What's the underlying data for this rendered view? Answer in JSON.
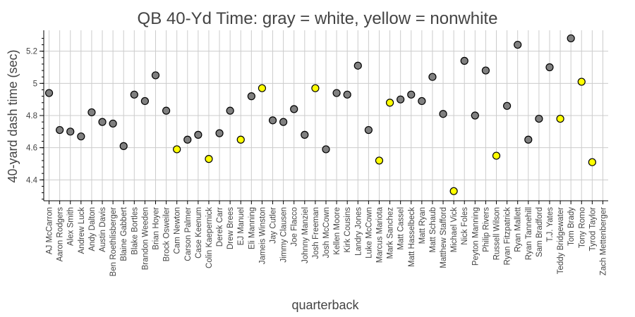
{
  "chart_data": {
    "type": "scatter",
    "title": "QB 40-Yd Time: gray = white, yellow = nonwhite",
    "xlabel": "quarterback",
    "ylabel": "40-yard dash time (sec)",
    "ylim": [
      4.27,
      5.33
    ],
    "yticks": [
      4.4,
      4.6,
      4.8,
      5,
      5.2
    ],
    "ytick_labels": [
      "4.4",
      "4.6",
      "4.8",
      "5",
      "5.2"
    ],
    "grid": true,
    "colors": {
      "white": "#808080",
      "nonwhite": "#ffff00"
    },
    "categories": [
      "AJ McCarron",
      "Aaron Rodgers",
      "Alex Smith",
      "Andrew Luck",
      "Andy Dalton",
      "Austin Davis",
      "Ben Roethlisberger",
      "Blaine Gabbert",
      "Blake Bortles",
      "Brandon Weeden",
      "Brian Hoyer",
      "Brock Osweiler",
      "Cam Newton",
      "Carson Palmer",
      "Case Keenum",
      "Colin Kaepernick",
      "Derek Carr",
      "Drew Brees",
      "EJ Manuel",
      "Eli Manning",
      "Jameis Winston",
      "Jay Cutler",
      "Jimmy Clausen",
      "Joe Flacco",
      "Johnny Manziel",
      "Josh Freeman",
      "Josh McCown",
      "Kellen Moore",
      "Kirk Cousins",
      "Landry Jones",
      "Luke McCown",
      "Marcus Mariota",
      "Mark Sanchez",
      "Matt Cassel",
      "Matt Hasselbeck",
      "Matt Ryan",
      "Matt Schaub",
      "Matthew Stafford",
      "Michael Vick",
      "Nick Foles",
      "Peyton Manning",
      "Philip Rivers",
      "Russell Wilson",
      "Ryan Fitzpatrick",
      "Ryan Mallett",
      "Ryan Tannehill",
      "Sam Bradford",
      "T.J. Yates",
      "Teddy Bridgewater",
      "Tom Brady",
      "Tony Romo",
      "Tyrod Taylor",
      "Zach Mettenberger"
    ],
    "values": [
      4.94,
      4.71,
      4.7,
      4.67,
      4.82,
      4.76,
      4.75,
      4.61,
      4.93,
      4.89,
      5.05,
      4.83,
      4.59,
      4.65,
      4.68,
      4.53,
      4.69,
      4.83,
      4.65,
      4.92,
      4.97,
      4.77,
      4.76,
      4.84,
      4.68,
      4.97,
      4.59,
      4.94,
      4.93,
      5.11,
      4.71,
      4.52,
      4.88,
      4.9,
      4.93,
      4.89,
      5.04,
      4.81,
      4.33,
      5.14,
      4.8,
      5.08,
      4.55,
      4.86,
      5.24,
      4.65,
      4.78,
      5.1,
      4.78,
      5.28,
      5.01,
      4.51,
      null
    ],
    "group": [
      "white",
      "white",
      "white",
      "white",
      "white",
      "white",
      "white",
      "white",
      "white",
      "white",
      "white",
      "white",
      "nonwhite",
      "white",
      "white",
      "nonwhite",
      "white",
      "white",
      "nonwhite",
      "white",
      "nonwhite",
      "white",
      "white",
      "white",
      "white",
      "nonwhite",
      "white",
      "white",
      "white",
      "white",
      "white",
      "nonwhite",
      "nonwhite",
      "white",
      "white",
      "white",
      "white",
      "white",
      "nonwhite",
      "white",
      "white",
      "white",
      "nonwhite",
      "white",
      "white",
      "white",
      "white",
      "white",
      "nonwhite",
      "white",
      "nonwhite",
      "nonwhite",
      "white"
    ]
  }
}
